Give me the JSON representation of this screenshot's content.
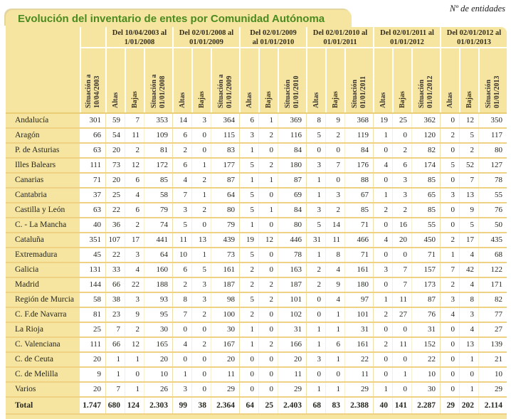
{
  "page": {
    "unit_note": "Nº de entidades",
    "title": "Evolución del inventario de entes por Comunidad Autónoma"
  },
  "colors": {
    "panel_tan": "#F6E5A1",
    "row_line_gold": "#EED183",
    "title_green": "#4A8A1E",
    "header_separator_white": "#FFFEF6"
  },
  "table": {
    "initial_column_header": "Situación a\n10/04/2003",
    "periods": [
      {
        "label": "Del 10/04/2003 al\n1/01/2008",
        "altas": "Altas",
        "bajas": "Bajas",
        "situacion": "Situación a\n01/01/2008"
      },
      {
        "label": "Del 02/01/2008 al\n01/01/2009",
        "altas": "Altas",
        "bajas": "Bajas",
        "situacion": "Situación a\n01/01/2009"
      },
      {
        "label": "Del 02/01/2009\nal 01/01/2010",
        "altas": "Altas",
        "bajas": "Bajas",
        "situacion": "Situación\n01/01/2010"
      },
      {
        "label": "Del 02/01/2010 al\n01/01/2011",
        "altas": "Altas",
        "bajas": "Bajas",
        "situacion": "Situación\n01/01/2011"
      },
      {
        "label": "Del 02/01/2011 al\n01/01/2012",
        "altas": "Altas",
        "bajas": "Bajas",
        "situacion": "Situación\n01/01/2012"
      },
      {
        "label": "Del 02/01/2012 al\n01/01/2013",
        "altas": "Altas",
        "bajas": "Bajas",
        "situacion": "Situación\n01/01/2013"
      }
    ],
    "rows": [
      {
        "label": "Andalucía",
        "values": [
          "301",
          "59",
          "7",
          "353",
          "14",
          "3",
          "364",
          "6",
          "1",
          "369",
          "8",
          "9",
          "368",
          "19",
          "25",
          "362",
          "0",
          "12",
          "350"
        ]
      },
      {
        "label": "Aragón",
        "values": [
          "66",
          "54",
          "11",
          "109",
          "6",
          "0",
          "115",
          "3",
          "2",
          "116",
          "5",
          "2",
          "119",
          "1",
          "0",
          "120",
          "2",
          "5",
          "117"
        ]
      },
      {
        "label": "P. de Asturias",
        "values": [
          "63",
          "20",
          "2",
          "81",
          "2",
          "0",
          "83",
          "1",
          "0",
          "84",
          "0",
          "0",
          "84",
          "0",
          "2",
          "82",
          "0",
          "2",
          "80"
        ]
      },
      {
        "label": "Illes Balears",
        "values": [
          "111",
          "73",
          "12",
          "172",
          "6",
          "1",
          "177",
          "5",
          "2",
          "180",
          "3",
          "7",
          "176",
          "4",
          "6",
          "174",
          "5",
          "52",
          "127"
        ]
      },
      {
        "label": "Canarias",
        "values": [
          "71",
          "20",
          "6",
          "85",
          "4",
          "2",
          "87",
          "1",
          "1",
          "87",
          "1",
          "0",
          "88",
          "0",
          "3",
          "85",
          "0",
          "7",
          "78"
        ]
      },
      {
        "label": "Cantabria",
        "values": [
          "37",
          "25",
          "4",
          "58",
          "7",
          "1",
          "64",
          "5",
          "0",
          "69",
          "1",
          "3",
          "67",
          "1",
          "3",
          "65",
          "3",
          "13",
          "55"
        ]
      },
      {
        "label": "Castilla y León",
        "values": [
          "63",
          "22",
          "6",
          "79",
          "3",
          "2",
          "80",
          "5",
          "1",
          "84",
          "3",
          "2",
          "85",
          "2",
          "2",
          "85",
          "0",
          "9",
          "76"
        ]
      },
      {
        "label": "C. - La Mancha",
        "values": [
          "40",
          "36",
          "2",
          "74",
          "5",
          "0",
          "79",
          "1",
          "0",
          "80",
          "5",
          "14",
          "71",
          "0",
          "16",
          "55",
          "0",
          "5",
          "50"
        ]
      },
      {
        "label": "Cataluña",
        "values": [
          "351",
          "107",
          "17",
          "441",
          "11",
          "13",
          "439",
          "19",
          "12",
          "446",
          "31",
          "11",
          "466",
          "4",
          "20",
          "450",
          "2",
          "17",
          "435"
        ]
      },
      {
        "label": "Extremadura",
        "values": [
          "45",
          "22",
          "3",
          "64",
          "10",
          "1",
          "73",
          "5",
          "0",
          "78",
          "1",
          "8",
          "71",
          "0",
          "0",
          "71",
          "1",
          "4",
          "68"
        ]
      },
      {
        "label": "Galicia",
        "values": [
          "131",
          "33",
          "4",
          "160",
          "6",
          "5",
          "161",
          "2",
          "0",
          "163",
          "2",
          "4",
          "161",
          "3",
          "7",
          "157",
          "7",
          "42",
          "122"
        ]
      },
      {
        "label": "Madrid",
        "values": [
          "144",
          "66",
          "22",
          "188",
          "2",
          "3",
          "187",
          "2",
          "2",
          "187",
          "2",
          "9",
          "180",
          "0",
          "7",
          "173",
          "2",
          "4",
          "171"
        ]
      },
      {
        "label": "Región de Murcia",
        "values": [
          "58",
          "38",
          "3",
          "93",
          "8",
          "3",
          "98",
          "5",
          "2",
          "101",
          "0",
          "4",
          "97",
          "1",
          "11",
          "87",
          "3",
          "8",
          "82"
        ]
      },
      {
        "label": "C. F.de Navarra",
        "values": [
          "81",
          "23",
          "9",
          "95",
          "7",
          "2",
          "100",
          "2",
          "0",
          "102",
          "0",
          "1",
          "101",
          "2",
          "27",
          "76",
          "4",
          "3",
          "77"
        ]
      },
      {
        "label": "La Rioja",
        "values": [
          "25",
          "7",
          "2",
          "30",
          "0",
          "0",
          "30",
          "1",
          "0",
          "31",
          "1",
          "1",
          "31",
          "0",
          "0",
          "31",
          "0",
          "4",
          "27"
        ]
      },
      {
        "label": "C. Valenciana",
        "values": [
          "111",
          "66",
          "12",
          "165",
          "4",
          "2",
          "167",
          "1",
          "2",
          "166",
          "1",
          "6",
          "161",
          "2",
          "11",
          "152",
          "0",
          "13",
          "139"
        ]
      },
      {
        "label": "C. de Ceuta",
        "values": [
          "20",
          "1",
          "1",
          "20",
          "0",
          "0",
          "20",
          "0",
          "0",
          "20",
          "3",
          "1",
          "22",
          "0",
          "0",
          "22",
          "0",
          "1",
          "21"
        ]
      },
      {
        "label": "C. de Melilla",
        "values": [
          "9",
          "1",
          "0",
          "10",
          "1",
          "0",
          "11",
          "0",
          "0",
          "11",
          "0",
          "0",
          "11",
          "0",
          "1",
          "10",
          "0",
          "0",
          "10"
        ]
      },
      {
        "label": "Varios",
        "values": [
          "20",
          "7",
          "1",
          "26",
          "3",
          "0",
          "29",
          "0",
          "0",
          "29",
          "1",
          "1",
          "29",
          "1",
          "0",
          "30",
          "0",
          "1",
          "29"
        ]
      }
    ],
    "total_row": {
      "label": "Total",
      "values": [
        "1.747",
        "680",
        "124",
        "2.303",
        "99",
        "38",
        "2.364",
        "64",
        "25",
        "2.403",
        "68",
        "83",
        "2.388",
        "40",
        "141",
        "2.287",
        "29",
        "202",
        "2.114"
      ]
    }
  }
}
